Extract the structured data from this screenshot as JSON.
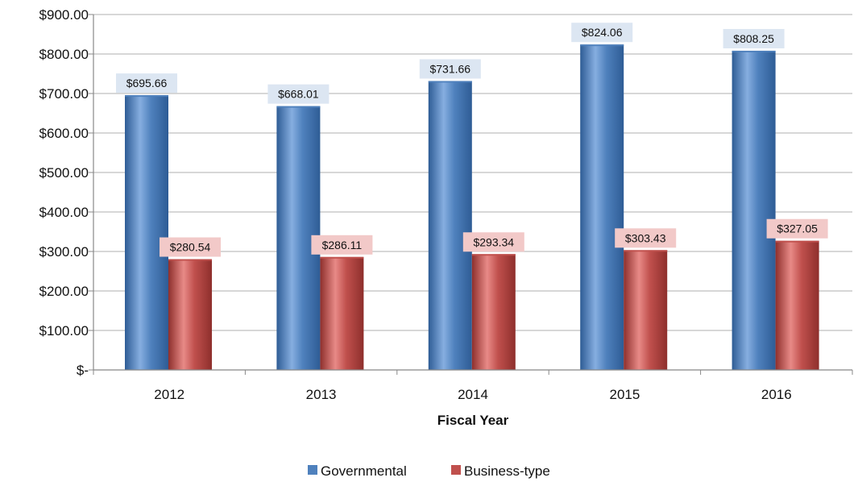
{
  "chart_data": {
    "type": "bar",
    "title": "",
    "xlabel": "Fiscal Year",
    "ylabel": "",
    "categories": [
      "2012",
      "2013",
      "2014",
      "2015",
      "2016"
    ],
    "series": [
      {
        "name": "Governmental",
        "values": [
          695.66,
          668.01,
          731.66,
          824.06,
          808.25
        ],
        "labels": [
          "$695.66",
          "$668.01",
          "$731.66",
          "$824.06",
          "$808.25"
        ],
        "color": "#4F81BD",
        "label_bg": "#DCE6F2"
      },
      {
        "name": "Business-type",
        "values": [
          280.54,
          286.11,
          293.34,
          303.43,
          327.05
        ],
        "labels": [
          "$280.54",
          "$286.11",
          "$293.34",
          "$303.43",
          "$327.05"
        ],
        "color": "#C0504D",
        "label_bg": "#F2C9C8"
      }
    ],
    "ylim": [
      0,
      900
    ],
    "yticks": [
      0,
      100,
      200,
      300,
      400,
      500,
      600,
      700,
      800,
      900
    ],
    "ytick_labels": [
      "$-",
      "$100.00",
      "$200.00",
      "$300.00",
      "$400.00",
      "$500.00",
      "$600.00",
      "$700.00",
      "$800.00",
      "$900.00"
    ],
    "grid": true,
    "legend_position": "bottom"
  }
}
